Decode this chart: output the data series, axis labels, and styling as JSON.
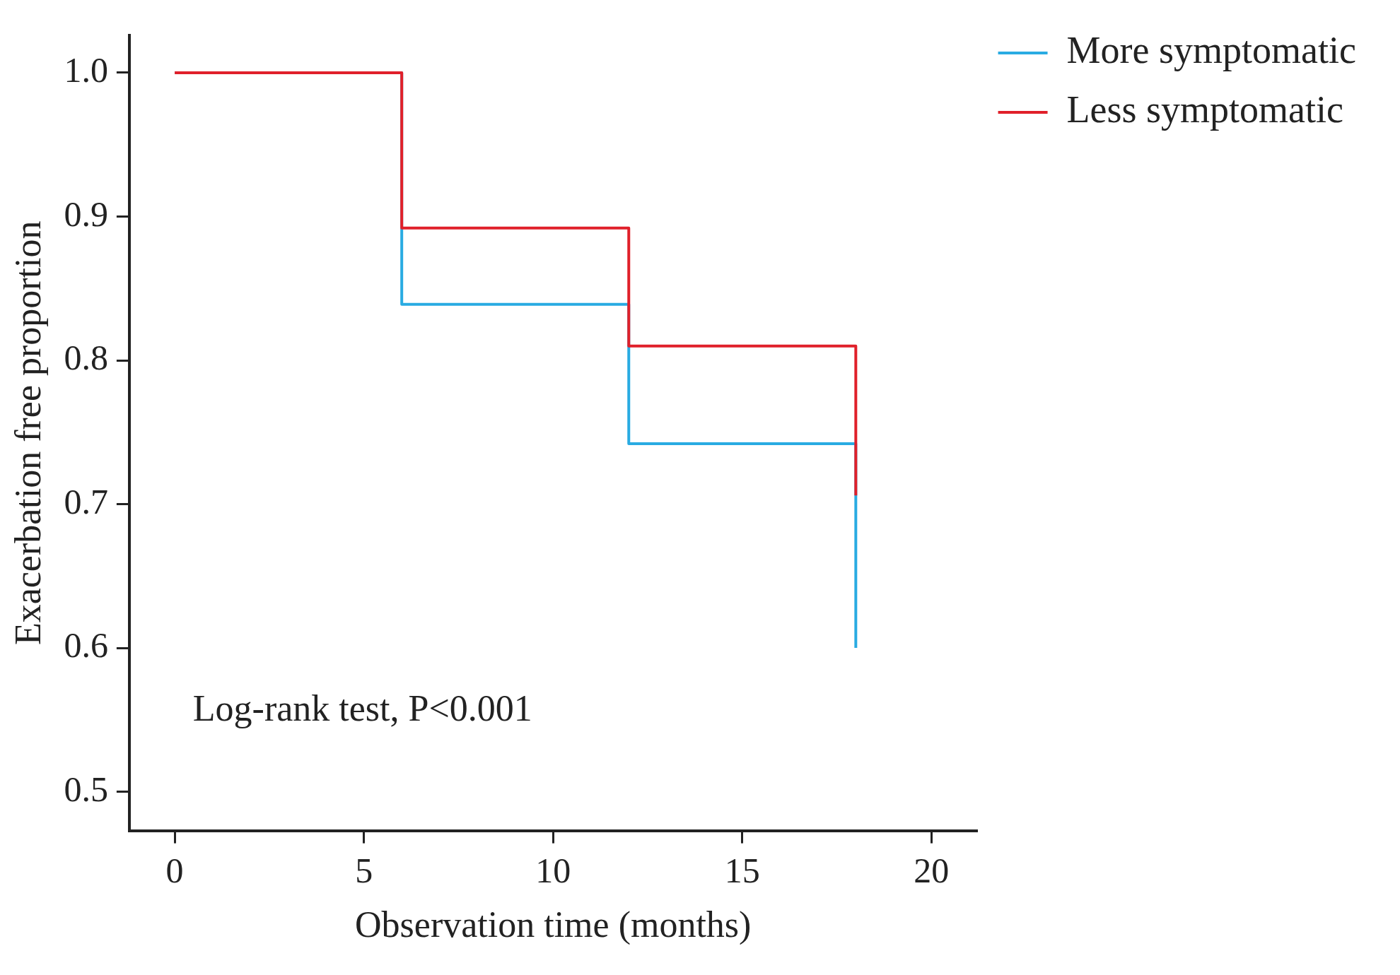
{
  "chart_data": {
    "type": "step",
    "xlabel": "Observation time (months)",
    "ylabel": "Exacerbation free proportion",
    "x": [
      0,
      6,
      12,
      18
    ],
    "series": [
      {
        "name": "More symptomatic",
        "color": "#29abe2",
        "values": [
          1,
          0.839,
          0.742,
          0.6
        ]
      },
      {
        "name": "Less symptomatic",
        "color": "#e0202a",
        "values": [
          1,
          0.892,
          0.81,
          0.706
        ]
      }
    ],
    "xlim": [
      -1.2,
      21.2
    ],
    "xticks": [
      0,
      5,
      10,
      15,
      20
    ],
    "ylim": [
      0.473,
      1.026
    ],
    "yticks": [
      0.5,
      0.6,
      0.7,
      0.8,
      0.9,
      {
        "value": 1,
        "label": "1.0"
      }
    ],
    "grid": false,
    "legend": "top right",
    "marker": "none",
    "line_style": "solid",
    "annotations": [
      "Log-rank test, P<0.001"
    ]
  }
}
